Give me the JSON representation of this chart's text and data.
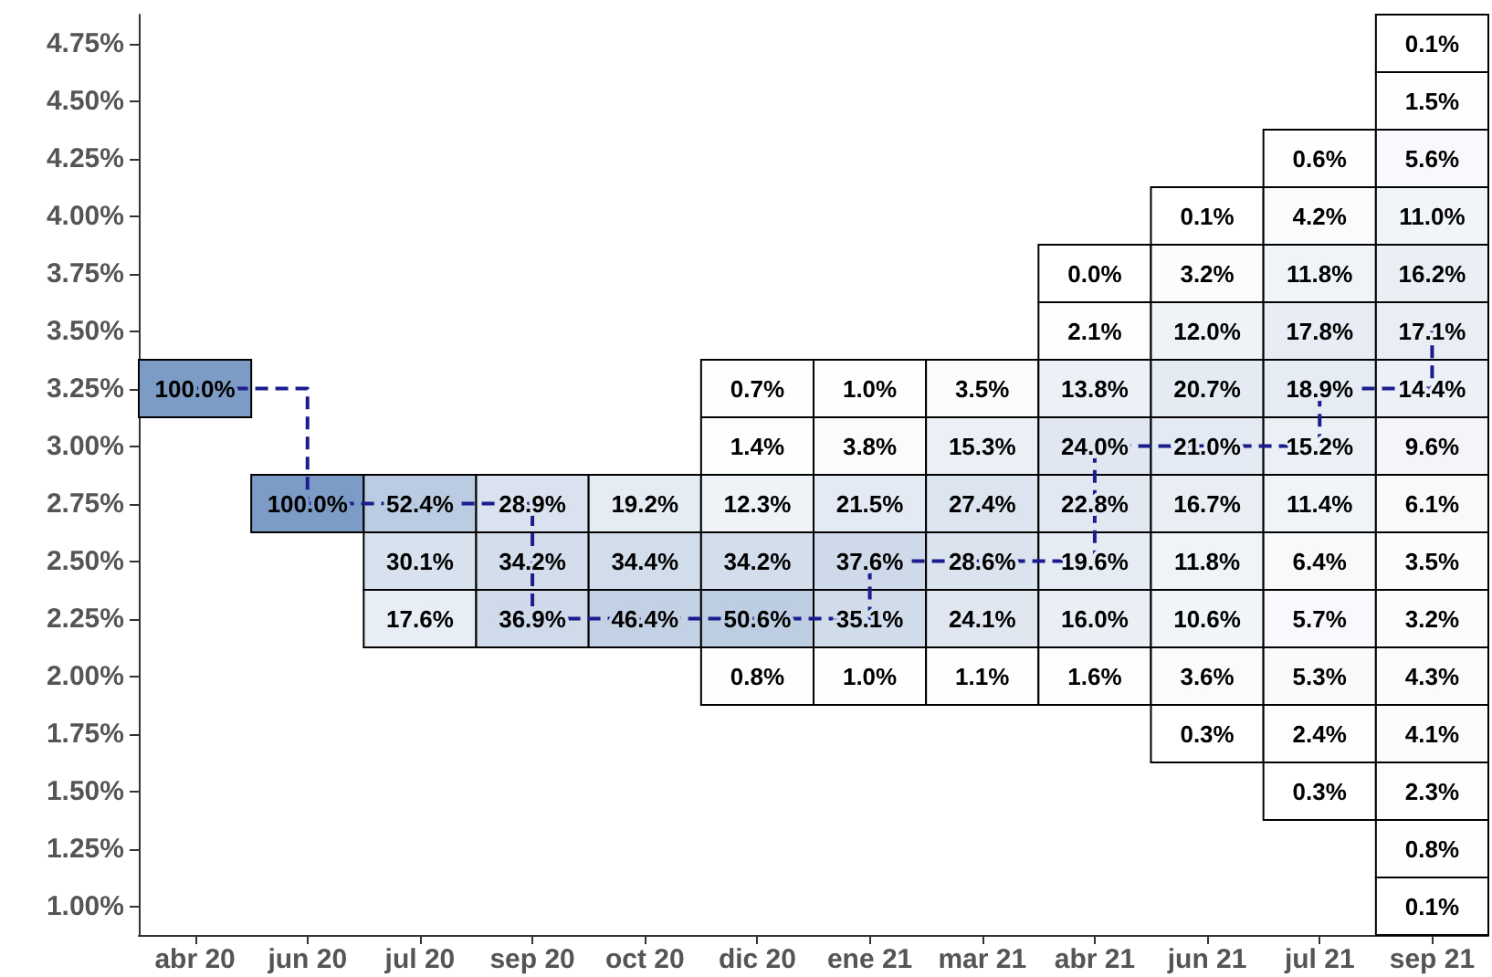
{
  "chart_data": {
    "type": "heatmap",
    "categories": [
      "abr 20",
      "jun 20",
      "jul 20",
      "sep 20",
      "oct 20",
      "dic 20",
      "ene 21",
      "mar 21",
      "abr 21",
      "jun 21",
      "jul 21",
      "sep 21"
    ],
    "ylim": [
      0.875,
      4.875
    ],
    "yticks": [
      {
        "value": 4.75,
        "label": "4.75%"
      },
      {
        "value": 4.5,
        "label": "4.50%"
      },
      {
        "value": 4.25,
        "label": "4.25%"
      },
      {
        "value": 4.0,
        "label": "4.00%"
      },
      {
        "value": 3.75,
        "label": "3.75%"
      },
      {
        "value": 3.5,
        "label": "3.50%"
      },
      {
        "value": 3.25,
        "label": "3.25%"
      },
      {
        "value": 3.0,
        "label": "3.00%"
      },
      {
        "value": 2.75,
        "label": "2.75%"
      },
      {
        "value": 2.5,
        "label": "2.50%"
      },
      {
        "value": 2.25,
        "label": "2.25%"
      },
      {
        "value": 2.0,
        "label": "2.00%"
      },
      {
        "value": 1.75,
        "label": "1.75%"
      },
      {
        "value": 1.5,
        "label": "1.50%"
      },
      {
        "value": 1.25,
        "label": "1.25%"
      },
      {
        "value": 1.0,
        "label": "1.00%"
      }
    ],
    "cells": [
      [
        null,
        null,
        null,
        null,
        null,
        null,
        null,
        null,
        null,
        null,
        null,
        0.1
      ],
      [
        null,
        null,
        null,
        null,
        null,
        null,
        null,
        null,
        null,
        null,
        null,
        1.5
      ],
      [
        null,
        null,
        null,
        null,
        null,
        null,
        null,
        null,
        null,
        null,
        0.6,
        5.6
      ],
      [
        null,
        null,
        null,
        null,
        null,
        null,
        null,
        null,
        null,
        0.1,
        4.2,
        11.0
      ],
      [
        null,
        null,
        null,
        null,
        null,
        null,
        null,
        null,
        0.0,
        3.2,
        11.8,
        16.2
      ],
      [
        null,
        null,
        null,
        null,
        null,
        null,
        null,
        null,
        2.1,
        12.0,
        17.8,
        17.1
      ],
      [
        100.0,
        null,
        null,
        null,
        null,
        0.7,
        1.0,
        3.5,
        13.8,
        20.7,
        18.9,
        14.4
      ],
      [
        null,
        null,
        null,
        null,
        null,
        1.4,
        3.8,
        15.3,
        24.0,
        21.0,
        15.2,
        9.6
      ],
      [
        null,
        100.0,
        52.4,
        28.9,
        19.2,
        12.3,
        21.5,
        27.4,
        22.8,
        16.7,
        11.4,
        6.1
      ],
      [
        null,
        null,
        30.1,
        34.2,
        34.4,
        34.2,
        37.6,
        28.6,
        19.6,
        11.8,
        6.4,
        3.5
      ],
      [
        null,
        null,
        17.6,
        36.9,
        46.4,
        50.6,
        35.1,
        24.1,
        16.0,
        10.6,
        5.7,
        3.2
      ],
      [
        null,
        null,
        null,
        null,
        null,
        0.8,
        1.0,
        1.1,
        1.6,
        3.6,
        5.3,
        4.3
      ],
      [
        null,
        null,
        null,
        null,
        null,
        null,
        null,
        null,
        null,
        0.3,
        2.4,
        4.1
      ],
      [
        null,
        null,
        null,
        null,
        null,
        null,
        null,
        null,
        null,
        null,
        0.3,
        2.3
      ],
      [
        null,
        null,
        null,
        null,
        null,
        null,
        null,
        null,
        null,
        null,
        null,
        0.8
      ],
      [
        null,
        null,
        null,
        null,
        null,
        null,
        null,
        null,
        null,
        null,
        null,
        0.1
      ]
    ],
    "cell_labels": [
      [
        null,
        null,
        null,
        null,
        null,
        null,
        null,
        null,
        null,
        null,
        null,
        "0.1%"
      ],
      [
        null,
        null,
        null,
        null,
        null,
        null,
        null,
        null,
        null,
        null,
        null,
        "1.5%"
      ],
      [
        null,
        null,
        null,
        null,
        null,
        null,
        null,
        null,
        null,
        null,
        "0.6%",
        "5.6%"
      ],
      [
        null,
        null,
        null,
        null,
        null,
        null,
        null,
        null,
        null,
        "0.1%",
        "4.2%",
        "11.0%"
      ],
      [
        null,
        null,
        null,
        null,
        null,
        null,
        null,
        null,
        "0.0%",
        "3.2%",
        "11.8%",
        "16.2%"
      ],
      [
        null,
        null,
        null,
        null,
        null,
        null,
        null,
        null,
        "2.1%",
        "12.0%",
        "17.8%",
        "17.1%"
      ],
      [
        "100.0%",
        null,
        null,
        null,
        null,
        "0.7%",
        "1.0%",
        "3.5%",
        "13.8%",
        "20.7%",
        "18.9%",
        "14.4%"
      ],
      [
        null,
        null,
        null,
        null,
        null,
        "1.4%",
        "3.8%",
        "15.3%",
        "24.0%",
        "21.0%",
        "15.2%",
        "9.6%"
      ],
      [
        null,
        "100.0%",
        "52.4%",
        "28.9%",
        "19.2%",
        "12.3%",
        "21.5%",
        "27.4%",
        "22.8%",
        "16.7%",
        "11.4%",
        "6.1%"
      ],
      [
        null,
        null,
        "30.1%",
        "34.2%",
        "34.4%",
        "34.2%",
        "37.6%",
        "28.6%",
        "19.6%",
        "11.8%",
        "6.4%",
        "3.5%"
      ],
      [
        null,
        null,
        "17.6%",
        "36.9%",
        "46.4%",
        "50.6%",
        "35.1%",
        "24.1%",
        "16.0%",
        "10.6%",
        "5.7%",
        "3.2%"
      ],
      [
        null,
        null,
        null,
        null,
        null,
        "0.8%",
        "1.0%",
        "1.1%",
        "1.6%",
        "3.6%",
        "5.3%",
        "4.3%"
      ],
      [
        null,
        null,
        null,
        null,
        null,
        null,
        null,
        null,
        null,
        "0.3%",
        "2.4%",
        "4.1%"
      ],
      [
        null,
        null,
        null,
        null,
        null,
        null,
        null,
        null,
        null,
        null,
        "0.3%",
        "2.3%"
      ],
      [
        null,
        null,
        null,
        null,
        null,
        null,
        null,
        null,
        null,
        null,
        null,
        "0.8%"
      ],
      [
        null,
        null,
        null,
        null,
        null,
        null,
        null,
        null,
        null,
        null,
        null,
        "0.1%"
      ]
    ],
    "series": [
      {
        "type": "step",
        "color": "#1c1c8f",
        "line_style": "dashed",
        "values": [
          3.25,
          2.75,
          2.75,
          2.25,
          2.25,
          2.25,
          2.5,
          2.5,
          3.0,
          3.0,
          3.25,
          3.5
        ]
      }
    ],
    "grid": false
  }
}
